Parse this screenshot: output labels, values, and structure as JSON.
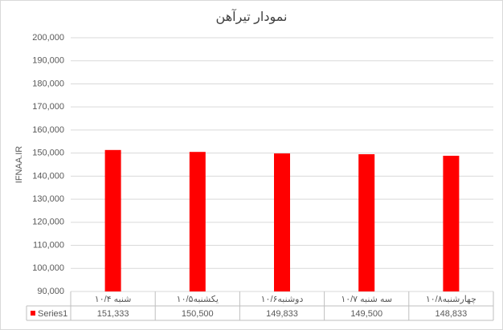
{
  "chart_data": {
    "type": "bar",
    "title": "نمودار تیرآهن",
    "y_axis_label": "IFNAA.IR",
    "categories": [
      "شنبه ۱۰/۴",
      "یکشنبه۱۰/۵",
      "دوشنبه۱۰/۶",
      "سه شنبه ۱۰/۷",
      "چهارشنبه۱۰/۸"
    ],
    "series": [
      {
        "name": "Series1",
        "color": "#ff0000",
        "values": [
          151333,
          150500,
          149833,
          149500,
          148833
        ],
        "value_labels": [
          "151,333",
          "150,500",
          "149,833",
          "149,500",
          "148,833"
        ]
      }
    ],
    "ylim": [
      90000,
      200000
    ],
    "yticks": [
      {
        "value": 90000,
        "label": "90,000"
      },
      {
        "value": 100000,
        "label": "100,000"
      },
      {
        "value": 110000,
        "label": "110,000"
      },
      {
        "value": 120000,
        "label": "120,000"
      },
      {
        "value": 130000,
        "label": "130,000"
      },
      {
        "value": 140000,
        "label": "140,000"
      },
      {
        "value": 150000,
        "label": "150,000"
      },
      {
        "value": 160000,
        "label": "160,000"
      },
      {
        "value": 170000,
        "label": "170,000"
      },
      {
        "value": 180000,
        "label": "180,000"
      },
      {
        "value": 190000,
        "label": "190,000"
      },
      {
        "value": 200000,
        "label": "200,000"
      }
    ],
    "grid": true
  }
}
